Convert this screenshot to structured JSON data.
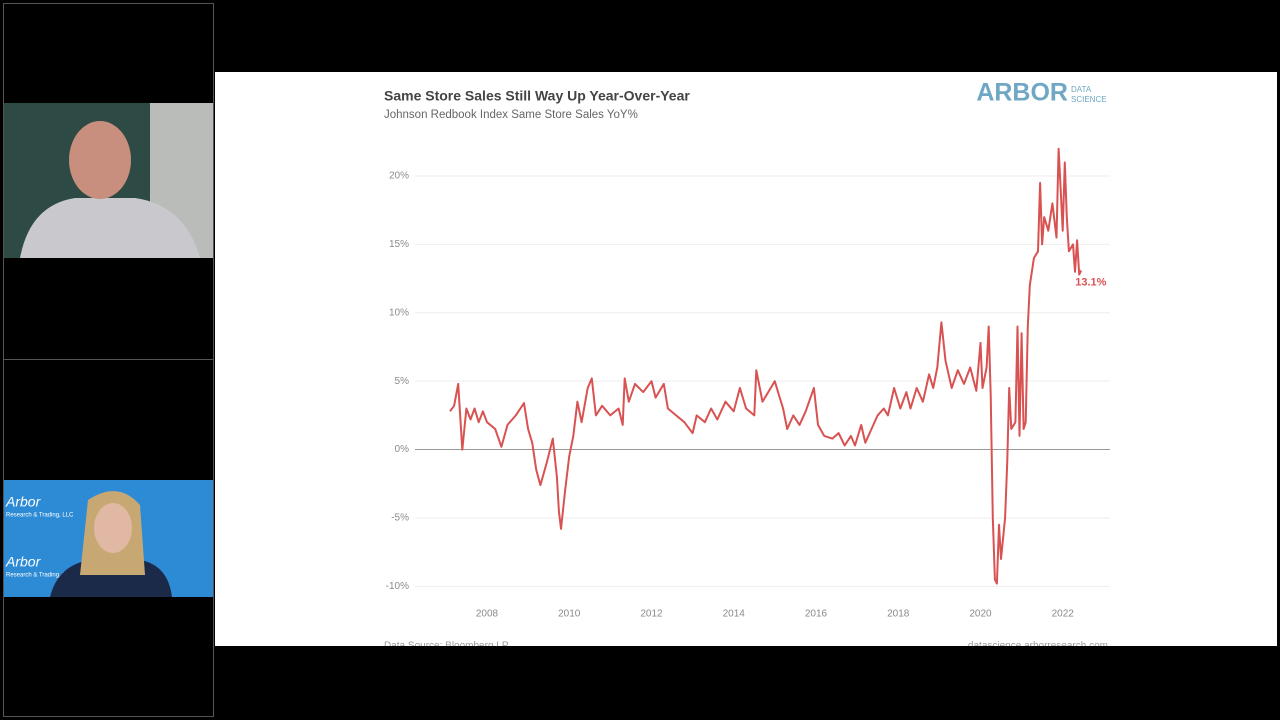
{
  "video_tiles": [
    {
      "background_text": [
        "Arbor",
        "Research & Trading, LLC"
      ]
    }
  ],
  "slide": {
    "logo": "ARBOR",
    "logo_sub": [
      "DATA",
      "SCIENCE"
    ],
    "source": "Data Source: Bloomberg LP",
    "website": "datascience.arborresearch.com"
  },
  "chart_data": {
    "type": "line",
    "title": "Same Store Sales Still Way Up Year-Over-Year",
    "subtitle": "Johnson Redbook Index Same Store Sales YoY%",
    "x": [
      2007.1,
      2007.2,
      2007.3,
      2007.4,
      2007.5,
      2007.6,
      2007.7,
      2007.8,
      2007.9,
      2008.0,
      2008.2,
      2008.35,
      2008.5,
      2008.7,
      2008.9,
      2009.0,
      2009.1,
      2009.2,
      2009.3,
      2009.45,
      2009.6,
      2009.7,
      2009.75,
      2009.8,
      2009.9,
      2010.0,
      2010.1,
      2010.2,
      2010.3,
      2010.45,
      2010.55,
      2010.65,
      2010.8,
      2011.0,
      2011.2,
      2011.3,
      2011.35,
      2011.45,
      2011.6,
      2011.8,
      2012.0,
      2012.1,
      2012.3,
      2012.4,
      2012.6,
      2012.8,
      2013.0,
      2013.1,
      2013.3,
      2013.45,
      2013.6,
      2013.8,
      2014.0,
      2014.15,
      2014.3,
      2014.5,
      2014.55,
      2014.7,
      2014.9,
      2015.0,
      2015.1,
      2015.2,
      2015.3,
      2015.45,
      2015.6,
      2015.75,
      2015.95,
      2016.05,
      2016.2,
      2016.4,
      2016.55,
      2016.7,
      2016.85,
      2016.95,
      2017.1,
      2017.2,
      2017.35,
      2017.5,
      2017.65,
      2017.75,
      2017.9,
      2018.05,
      2018.2,
      2018.3,
      2018.45,
      2018.6,
      2018.75,
      2018.85,
      2018.95,
      2019.05,
      2019.15,
      2019.3,
      2019.45,
      2019.6,
      2019.75,
      2019.9,
      2020.0,
      2020.05,
      2020.15,
      2020.2,
      2020.25,
      2020.3,
      2020.35,
      2020.4,
      2020.45,
      2020.5,
      2020.6,
      2020.65,
      2020.7,
      2020.75,
      2020.85,
      2020.9,
      2020.95,
      2021.0,
      2021.05,
      2021.1,
      2021.15,
      2021.2,
      2021.3,
      2021.4,
      2021.45,
      2021.5,
      2021.55,
      2021.65,
      2021.75,
      2021.85,
      2021.9,
      2021.95,
      2022.0,
      2022.05,
      2022.1,
      2022.15,
      2022.25,
      2022.3,
      2022.35,
      2022.4,
      2022.45
    ],
    "series": [
      {
        "color": "#d95252",
        "values": [
          2.8,
          3.2,
          4.8,
          0,
          3.0,
          2.2,
          3.0,
          2.0,
          2.8,
          2.0,
          1.5,
          0.2,
          1.8,
          2.5,
          3.4,
          1.5,
          0.5,
          -1.5,
          -2.6,
          -1.0,
          0.8,
          -2.0,
          -4.5,
          -5.8,
          -3.0,
          -0.5,
          1.0,
          3.5,
          2.0,
          4.5,
          5.2,
          2.5,
          3.2,
          2.5,
          3.0,
          1.8,
          5.2,
          3.5,
          4.8,
          4.2,
          5.0,
          3.8,
          4.8,
          3.0,
          2.5,
          2.0,
          1.2,
          2.5,
          2.0,
          3.0,
          2.2,
          3.5,
          2.8,
          4.5,
          3.0,
          2.5,
          5.8,
          3.5,
          4.5,
          5.0,
          4.0,
          3.0,
          1.5,
          2.5,
          1.8,
          2.8,
          4.5,
          1.8,
          1.0,
          0.8,
          1.2,
          0.3,
          1.0,
          0.3,
          1.8,
          0.5,
          1.5,
          2.5,
          3.0,
          2.5,
          4.5,
          3.0,
          4.2,
          3.0,
          4.5,
          3.5,
          5.5,
          4.5,
          6.0,
          9.3,
          6.5,
          4.5,
          5.8,
          4.8,
          6.0,
          4.3,
          7.8,
          4.5,
          6.0,
          9.0,
          4.0,
          -5.0,
          -9.5,
          -9.8,
          -5.5,
          -8.0,
          -5.0,
          -1.0,
          4.5,
          1.5,
          2.0,
          9.0,
          1.0,
          8.5,
          1.5,
          2.0,
          9.0,
          12.0,
          14.0,
          14.5,
          19.5,
          15.0,
          17.0,
          16.0,
          18.0,
          15.5,
          22.0,
          19.0,
          16.0,
          21.0,
          17.0,
          14.5,
          15.0,
          13.0,
          15.3,
          12.8,
          13.1
        ]
      }
    ],
    "annotations": [
      "13.1%"
    ],
    "xlim": [
      2006.25,
      2023.15
    ],
    "xticks": [
      2008,
      2010,
      2012,
      2014,
      2016,
      2018,
      2020,
      2022
    ],
    "ylim": [
      -11,
      23
    ],
    "yticks": [
      {
        "value": -10,
        "label": "-10%"
      },
      {
        "value": -5,
        "label": "-5%"
      },
      {
        "value": 0,
        "label": "0%"
      },
      {
        "value": 5,
        "label": "5%"
      },
      {
        "value": 10,
        "label": "10%"
      },
      {
        "value": 15,
        "label": "15%"
      },
      {
        "value": 20,
        "label": "20%"
      }
    ],
    "grid": true
  }
}
